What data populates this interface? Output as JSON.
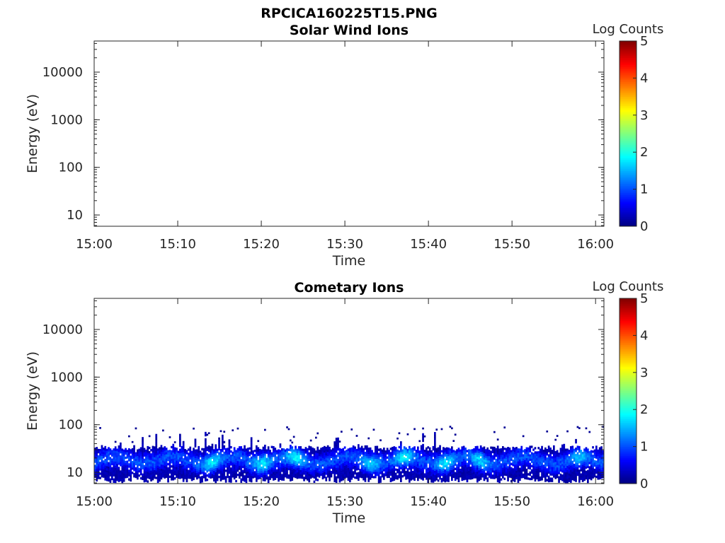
{
  "figure_title": "RPCICA160225T15.PNG",
  "chart_data": [
    {
      "type": "heatmap",
      "title": "Solar Wind Ions",
      "xlabel": "Time",
      "ylabel": "Energy (eV)",
      "x_ticks": [
        "15:00",
        "15:10",
        "15:20",
        "15:30",
        "15:40",
        "15:50",
        "16:00"
      ],
      "x_range": [
        "15:00",
        "16:01"
      ],
      "y_scale": "log",
      "y_ticks": [
        "10",
        "100",
        "1000",
        "10000"
      ],
      "y_range": [
        5.8,
        45000
      ],
      "colorbar": {
        "label": "Log Counts",
        "range": [
          0,
          5
        ],
        "ticks": [
          "0",
          "1",
          "2",
          "3",
          "4",
          "5"
        ],
        "colormap": "jet"
      },
      "data": "empty"
    },
    {
      "type": "heatmap",
      "title": "Cometary Ions",
      "xlabel": "Time",
      "ylabel": "Energy (eV)",
      "x_ticks": [
        "15:00",
        "15:10",
        "15:20",
        "15:30",
        "15:40",
        "15:50",
        "16:00"
      ],
      "x_range": [
        "15:00",
        "16:01"
      ],
      "y_scale": "log",
      "y_ticks": [
        "10",
        "100",
        "1000",
        "10000"
      ],
      "y_range": [
        5.8,
        45000
      ],
      "colorbar": {
        "label": "Log Counts",
        "range": [
          0,
          5
        ],
        "ticks": [
          "0",
          "1",
          "2",
          "3",
          "4",
          "5"
        ],
        "colormap": "jet"
      },
      "data": {
        "energy_band_eV": [
          6,
          30
        ],
        "peak_energy_eV": 17,
        "typical_log_counts": [
          0.5,
          1.5
        ],
        "max_log_counts": 2,
        "bright_spots": [
          {
            "time": "15:14",
            "energy_eV": 22,
            "log_counts": 1.8
          },
          {
            "time": "15:20",
            "energy_eV": 22,
            "log_counts": 1.8
          },
          {
            "time": "15:24",
            "energy_eV": 24,
            "log_counts": 1.9
          },
          {
            "time": "15:33",
            "energy_eV": 22,
            "log_counts": 1.7
          },
          {
            "time": "15:37",
            "energy_eV": 25,
            "log_counts": 1.9
          },
          {
            "time": "15:42",
            "energy_eV": 24,
            "log_counts": 1.8
          },
          {
            "time": "15:46",
            "energy_eV": 22,
            "log_counts": 1.7
          },
          {
            "time": "15:58",
            "energy_eV": 20,
            "log_counts": 1.6
          }
        ]
      }
    }
  ]
}
